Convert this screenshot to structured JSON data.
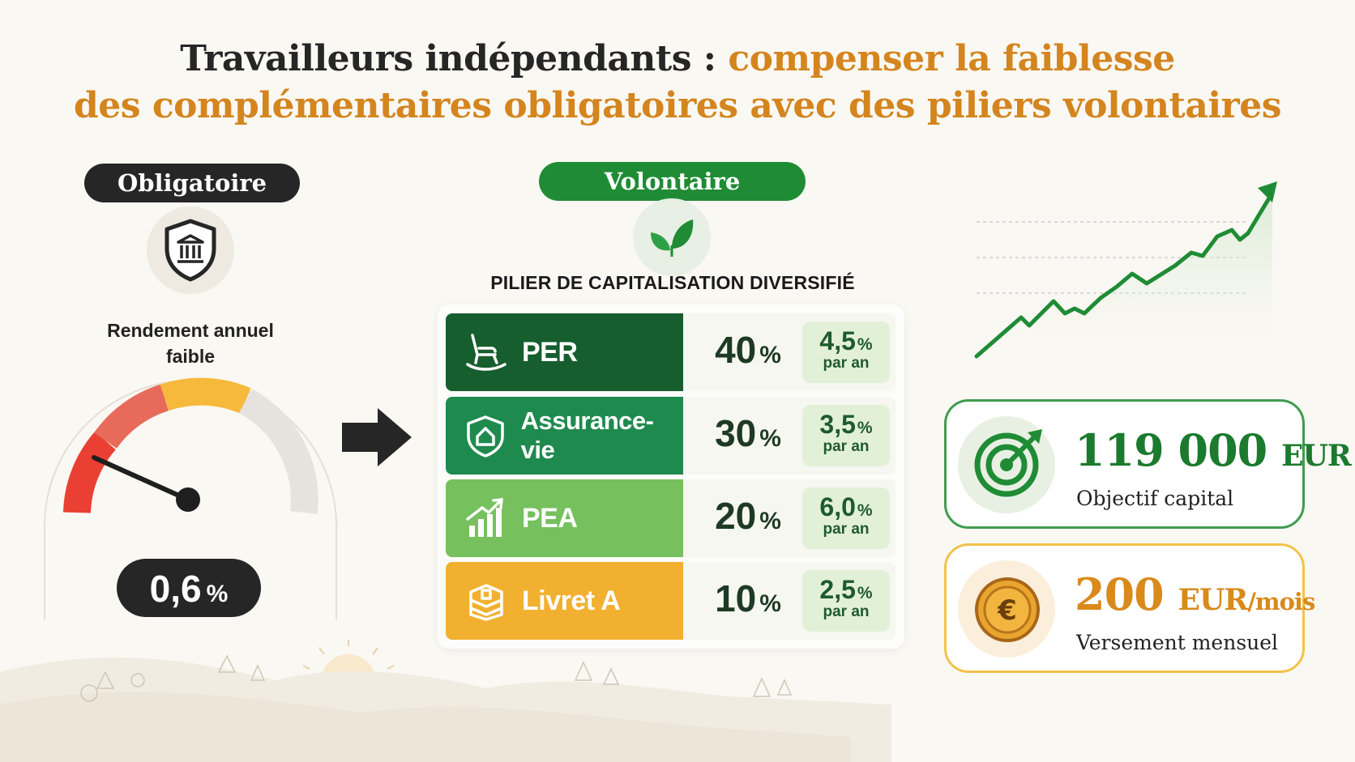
{
  "title": {
    "part1": "Travailleurs indépendants : ",
    "part2": "compenser la faiblesse",
    "line2": "des complémentaires obligatoires avec des piliers volontaires"
  },
  "obligatoire": {
    "label": "Obligatoire",
    "icon": "shield-bank-icon",
    "rendement_line1": "Rendement annuel",
    "rendement_line2": "faible",
    "rate_value": "0,6",
    "rate_unit": "%",
    "gauge_level_fraction": 0.12
  },
  "volontaire": {
    "label": "Volontaire",
    "icon": "leaf-icon",
    "pilier_title": "PILIER DE CAPITALISATION DIVERSIFIÉ",
    "rows": [
      {
        "name": "PER",
        "icon": "rocking-chair-icon",
        "share": "40",
        "share_unit": "%",
        "yield": "4,5",
        "yield_unit": "%",
        "per": "par an",
        "color": "#175e2e"
      },
      {
        "name": "Assurance-vie",
        "icon": "shield-house-icon",
        "share": "30",
        "share_unit": "%",
        "yield": "3,5",
        "yield_unit": "%",
        "per": "par an",
        "color": "#1f8a4e"
      },
      {
        "name": "PEA",
        "icon": "bar-chart-up-icon",
        "share": "20",
        "share_unit": "%",
        "yield": "6,0",
        "yield_unit": "%",
        "per": "par an",
        "color": "#76c05d"
      },
      {
        "name": "Livret A",
        "icon": "booklet-icon",
        "share": "10",
        "share_unit": "%",
        "yield": "2,5",
        "yield_unit": "%",
        "per": "par an",
        "color": "#f2b030"
      }
    ]
  },
  "goal": {
    "value": "119 000",
    "unit": "EUR",
    "label": "Objectif capital",
    "icon": "target-icon"
  },
  "monthly": {
    "value": "200",
    "unit": "EUR",
    "unit_suffix": "/mois",
    "label": "Versement mensuel",
    "icon": "euro-coin-icon"
  },
  "colors": {
    "accent_orange": "#d4851e",
    "accent_green": "#1f8c35",
    "dark": "#262626"
  }
}
